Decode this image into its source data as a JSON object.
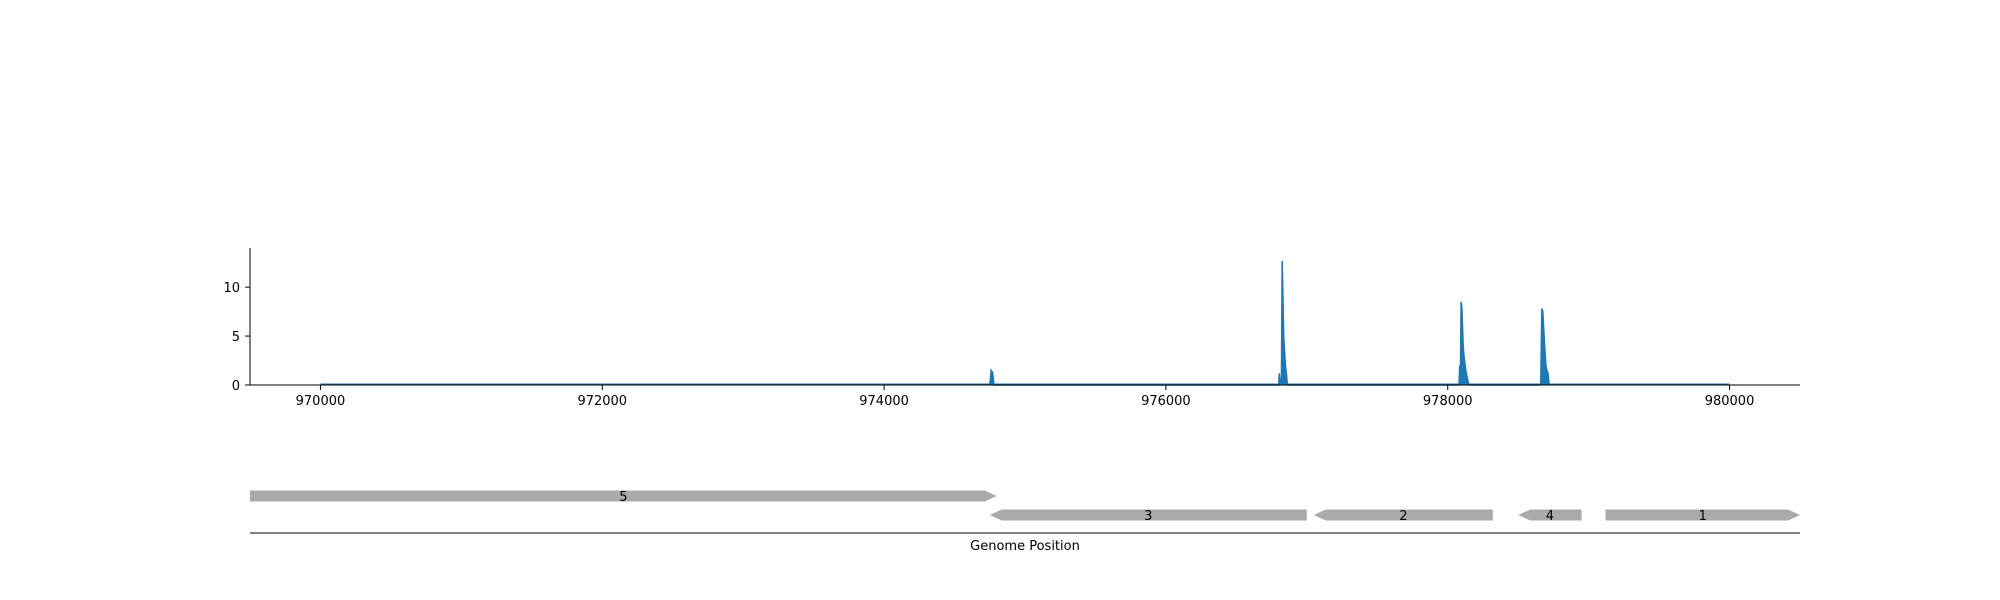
{
  "chart_data": {
    "type": "area",
    "title": "",
    "ylabel": "",
    "colors": {
      "coverage": "#1f77b4",
      "axis": "#000000",
      "gene": "#aaaaaa"
    },
    "xlim": [
      969500,
      980500
    ],
    "ylim": [
      0,
      14
    ],
    "x_ticks": [
      970000,
      972000,
      974000,
      976000,
      978000,
      980000
    ],
    "y_ticks": [
      0,
      5,
      10
    ],
    "baseline": {
      "x_start": 970000,
      "x_end": 980000
    },
    "series": [
      {
        "type": "area",
        "points": [
          [
            974750,
            0
          ],
          [
            974760,
            1.5
          ],
          [
            974770,
            1.3
          ],
          [
            974780,
            0
          ],
          [
            976800,
            0
          ],
          [
            976805,
            1.2
          ],
          [
            976812,
            0
          ],
          [
            976820,
            0.6
          ],
          [
            976825,
            12.7
          ],
          [
            976830,
            9.5
          ],
          [
            976836,
            5.0
          ],
          [
            976842,
            3.5
          ],
          [
            976848,
            2.0
          ],
          [
            976855,
            1.2
          ],
          [
            976862,
            0
          ],
          [
            978080,
            0
          ],
          [
            978085,
            2.0
          ],
          [
            978090,
            0.8
          ],
          [
            978095,
            8.5
          ],
          [
            978100,
            8.0
          ],
          [
            978105,
            6.0
          ],
          [
            978110,
            4.0
          ],
          [
            978115,
            3.0
          ],
          [
            978120,
            2.5
          ],
          [
            978128,
            1.5
          ],
          [
            978138,
            0.8
          ],
          [
            978150,
            0
          ],
          [
            978660,
            0
          ],
          [
            978668,
            7.8
          ],
          [
            978675,
            7.5
          ],
          [
            978682,
            5.5
          ],
          [
            978690,
            3.5
          ],
          [
            978697,
            2.0
          ],
          [
            978704,
            1.5
          ],
          [
            978712,
            1.2
          ],
          [
            978720,
            0
          ]
        ]
      }
    ],
    "genes": {
      "track_label": "Genome Position",
      "items": [
        {
          "label": "5",
          "start": 969500,
          "end": 974800,
          "strand": "+",
          "row": 0
        },
        {
          "label": "3",
          "start": 974750,
          "end": 977000,
          "strand": "-",
          "row": 1
        },
        {
          "label": "2",
          "start": 977050,
          "end": 978320,
          "strand": "-",
          "row": 1
        },
        {
          "label": "4",
          "start": 978500,
          "end": 978950,
          "strand": "-",
          "row": 1
        },
        {
          "label": "1",
          "start": 979120,
          "end": 980500,
          "strand": "+",
          "row": 1
        }
      ]
    }
  }
}
